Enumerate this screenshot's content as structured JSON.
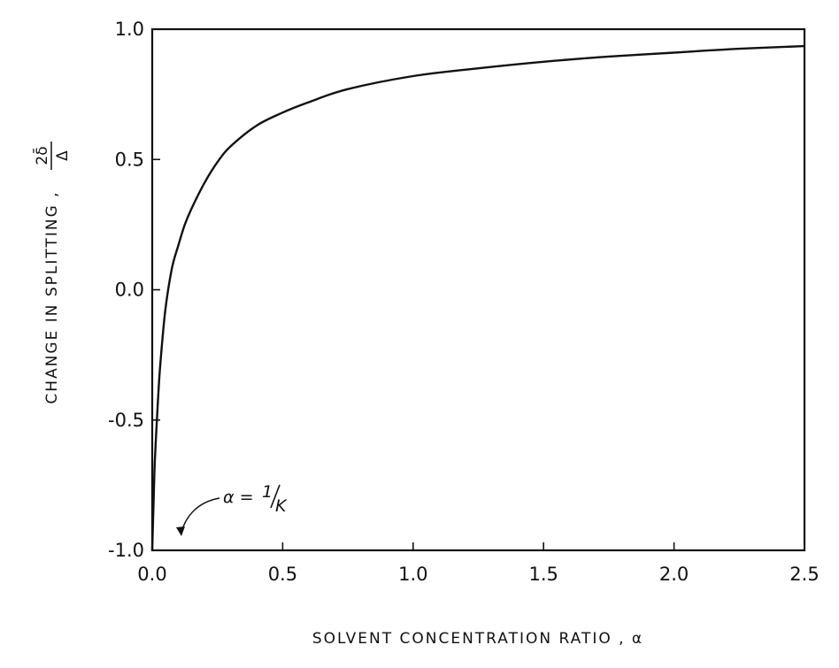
{
  "chart_data": {
    "type": "line",
    "title": "",
    "xlabel": "SOLVENT  CONCENTRATION  RATIO , α",
    "ylabel_text": "CHANGE  IN  SPLITTING ,",
    "ylabel_fraction": {
      "numerator": "2δ̄",
      "denominator": "Δ"
    },
    "xlim": [
      0.0,
      2.5
    ],
    "ylim": [
      -1.0,
      1.0
    ],
    "xticks": [
      0.0,
      0.5,
      1.0,
      1.5,
      2.0,
      2.5
    ],
    "xtick_labels": [
      "0.0",
      "0.5",
      "1.0",
      "1.5",
      "2.0",
      "2.5"
    ],
    "yticks": [
      -1.0,
      -0.5,
      0.0,
      0.5,
      1.0
    ],
    "ytick_labels": [
      "-1.0",
      "-0.5",
      "0.0",
      "0.5",
      "1.0"
    ],
    "grid": false,
    "series": [
      {
        "color": "#111111",
        "x": [
          0.0,
          0.005,
          0.01,
          0.02,
          0.03,
          0.05,
          0.075,
          0.1,
          0.125,
          0.15,
          0.2,
          0.25,
          0.3,
          0.4,
          0.5,
          0.6,
          0.75,
          1.0,
          1.25,
          1.5,
          1.75,
          2.0,
          2.25,
          2.5
        ],
        "y": [
          -1.0,
          -0.82,
          -0.66,
          -0.46,
          -0.3,
          -0.08,
          0.08,
          0.17,
          0.25,
          0.31,
          0.41,
          0.49,
          0.55,
          0.63,
          0.68,
          0.72,
          0.77,
          0.82,
          0.85,
          0.875,
          0.895,
          0.91,
          0.925,
          0.935
        ]
      }
    ],
    "annotations": [
      {
        "text": "α = 1/K",
        "x": 0.1,
        "y": -1.0
      }
    ]
  }
}
